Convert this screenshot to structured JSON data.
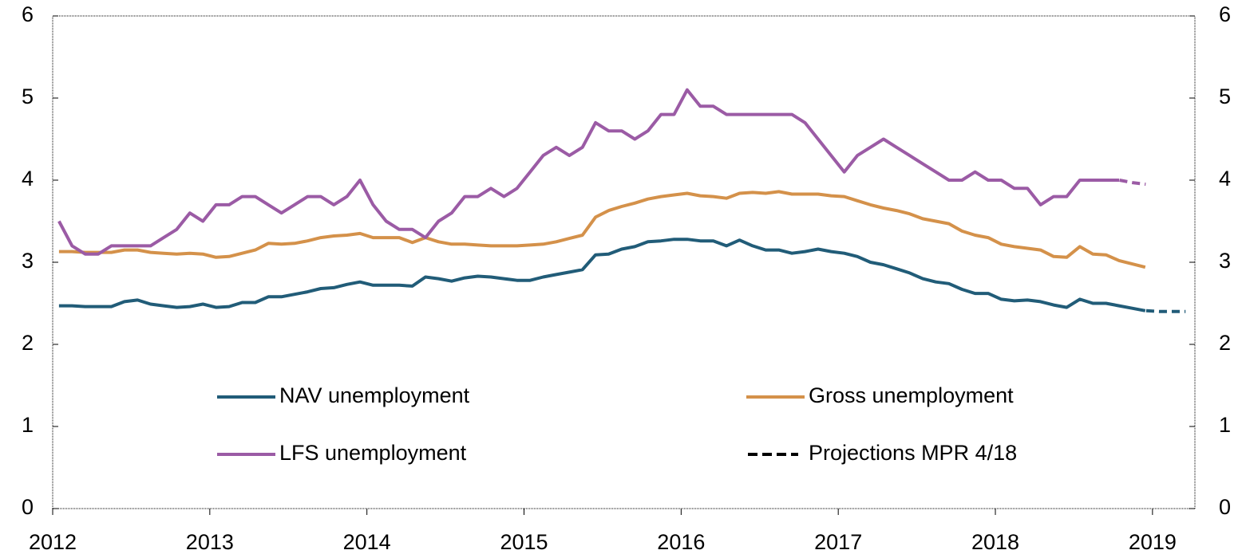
{
  "chart_data": {
    "type": "line",
    "xlim": [
      2012,
      2019.27
    ],
    "xticks": [
      2012,
      2013,
      2014,
      2015,
      2016,
      2017,
      2018,
      2019
    ],
    "ylim": [
      0,
      6
    ],
    "yticks": [
      0,
      1,
      2,
      3,
      4,
      5,
      6
    ],
    "y2lim": [
      0,
      6
    ],
    "y2ticks": [
      0,
      1,
      2,
      3,
      4,
      5,
      6
    ],
    "series": [
      {
        "name": "NAV unemployment",
        "color": "#215c78",
        "start": 2012.04,
        "step": 0.0833,
        "values": [
          2.47,
          2.47,
          2.46,
          2.46,
          2.46,
          2.52,
          2.54,
          2.49,
          2.47,
          2.45,
          2.46,
          2.49,
          2.45,
          2.46,
          2.51,
          2.51,
          2.58,
          2.58,
          2.61,
          2.64,
          2.68,
          2.69,
          2.73,
          2.76,
          2.72,
          2.72,
          2.72,
          2.71,
          2.82,
          2.8,
          2.77,
          2.81,
          2.83,
          2.82,
          2.8,
          2.78,
          2.78,
          2.82,
          2.85,
          2.88,
          2.91,
          3.09,
          3.1,
          3.16,
          3.19,
          3.25,
          3.26,
          3.28,
          3.28,
          3.26,
          3.26,
          3.2,
          3.27,
          3.2,
          3.15,
          3.15,
          3.11,
          3.13,
          3.16,
          3.13,
          3.11,
          3.07,
          3.0,
          2.97,
          2.92,
          2.87,
          2.8,
          2.76,
          2.74,
          2.67,
          2.62,
          2.62,
          2.55,
          2.53,
          2.54,
          2.52,
          2.48,
          2.45,
          2.55,
          2.5,
          2.5,
          2.47,
          2.44,
          2.41
        ]
      },
      {
        "name": "Gross unemployment",
        "color": "#d4914a",
        "start": 2012.04,
        "step": 0.0833,
        "values": [
          3.13,
          3.13,
          3.12,
          3.12,
          3.12,
          3.15,
          3.15,
          3.12,
          3.11,
          3.1,
          3.11,
          3.1,
          3.06,
          3.07,
          3.11,
          3.15,
          3.23,
          3.22,
          3.23,
          3.26,
          3.3,
          3.32,
          3.33,
          3.35,
          3.3,
          3.3,
          3.3,
          3.24,
          3.3,
          3.25,
          3.22,
          3.22,
          3.21,
          3.2,
          3.2,
          3.2,
          3.21,
          3.22,
          3.25,
          3.29,
          3.33,
          3.55,
          3.63,
          3.68,
          3.72,
          3.77,
          3.8,
          3.82,
          3.84,
          3.81,
          3.8,
          3.78,
          3.84,
          3.85,
          3.84,
          3.86,
          3.83,
          3.83,
          3.83,
          3.81,
          3.8,
          3.75,
          3.7,
          3.66,
          3.63,
          3.59,
          3.53,
          3.5,
          3.47,
          3.38,
          3.33,
          3.3,
          3.22,
          3.19,
          3.17,
          3.15,
          3.07,
          3.06,
          3.19,
          3.1,
          3.09,
          3.02,
          2.98,
          2.94
        ]
      },
      {
        "name": "LFS unemployment",
        "color": "#9b5ba5",
        "start": 2012.04,
        "step": 0.0833,
        "values": [
          3.5,
          3.2,
          3.1,
          3.1,
          3.2,
          3.2,
          3.2,
          3.2,
          3.3,
          3.4,
          3.6,
          3.5,
          3.7,
          3.7,
          3.8,
          3.8,
          3.7,
          3.6,
          3.7,
          3.8,
          3.8,
          3.7,
          3.8,
          4.0,
          3.7,
          3.5,
          3.4,
          3.4,
          3.3,
          3.5,
          3.6,
          3.8,
          3.8,
          3.9,
          3.8,
          3.9,
          4.1,
          4.3,
          4.4,
          4.3,
          4.4,
          4.7,
          4.6,
          4.6,
          4.5,
          4.6,
          4.8,
          4.8,
          5.1,
          4.9,
          4.9,
          4.8,
          4.8,
          4.8,
          4.8,
          4.8,
          4.8,
          4.7,
          4.5,
          4.3,
          4.1,
          4.3,
          4.4,
          4.5,
          4.4,
          4.3,
          4.2,
          4.1,
          4.0,
          4.0,
          4.1,
          4.0,
          4.0,
          3.9,
          3.9,
          3.7,
          3.8,
          3.8,
          4.0,
          4.0,
          4.0,
          4.0
        ]
      },
      {
        "color": "#215c78",
        "dashed": true,
        "start": 2018.96,
        "step": 0.0833,
        "values": [
          2.41,
          2.4,
          2.4,
          2.4
        ]
      },
      {
        "color": "#9b5ba5",
        "dashed": true,
        "start": 2018.79,
        "step": 0.0833,
        "values": [
          4.0,
          3.97,
          3.95
        ]
      }
    ],
    "projection_legend": {
      "name": "Projections MPR 4/18",
      "color": "#000000"
    }
  }
}
